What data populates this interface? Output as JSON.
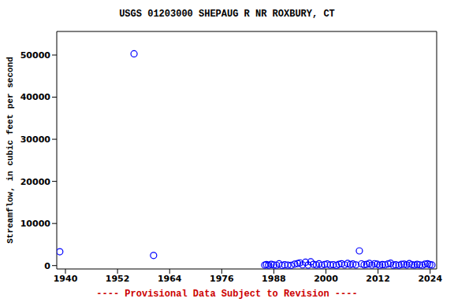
{
  "chart_data": {
    "type": "scatter",
    "title": "USGS 01203000 SHEPAUG R NR ROXBURY, CT",
    "y_label": "Streamflow, in cubic feet per second",
    "annotations": [
      "---- Provisional Data Subject to Revision ----"
    ],
    "x": [
      1938.7,
      1955.8,
      1960.3,
      1985.9,
      1986.3,
      1986.8,
      1987.4,
      1988.0,
      1988.6,
      1989.2,
      1989.9,
      1990.5,
      1991.2,
      1992.0,
      1992.8,
      1993.5,
      1994.0,
      1994.6,
      1995.3,
      1995.9,
      1996.5,
      1997.1,
      1997.8,
      1998.4,
      1999.0,
      1999.7,
      2000.3,
      2001.0,
      2001.7,
      2002.4,
      2003.0,
      2003.6,
      2004.3,
      2005.0,
      2005.6,
      2006.2,
      2006.9,
      2007.7,
      2008.2,
      2008.8,
      2009.4,
      2010.0,
      2010.6,
      2011.2,
      2011.8,
      2012.4,
      2013.0,
      2013.6,
      2014.3,
      2014.9,
      2015.5,
      2016.1,
      2016.8,
      2017.4,
      2018.0,
      2018.6,
      2019.2,
      2019.8,
      2020.4,
      2021.0,
      2021.6,
      2022.2,
      2022.8,
      2023.4,
      2023.9,
      2024.4
    ],
    "values": [
      3300,
      50300,
      2400,
      120,
      250,
      80,
      300,
      150,
      90,
      420,
      60,
      200,
      110,
      70,
      350,
      500,
      650,
      180,
      800,
      120,
      900,
      300,
      150,
      420,
      90,
      260,
      380,
      140,
      220,
      60,
      310,
      450,
      180,
      520,
      240,
      380,
      160,
      3500,
      410,
      200,
      290,
      520,
      130,
      460,
      330,
      90,
      250,
      180,
      400,
      560,
      110,
      200,
      70,
      280,
      340,
      160,
      480,
      220,
      120,
      300,
      180,
      90,
      360,
      420,
      250,
      140
    ],
    "color": "#0000ff",
    "marker": "circle_open",
    "xlim": [
      1938,
      2025.5
    ],
    "xticks": [
      1940,
      1952,
      1964,
      1976,
      1988,
      2000,
      2012,
      2024
    ],
    "ylim": [
      -800,
      55600
    ],
    "yticks": [
      0,
      10000,
      20000,
      30000,
      40000,
      50000
    ],
    "grid": false
  }
}
